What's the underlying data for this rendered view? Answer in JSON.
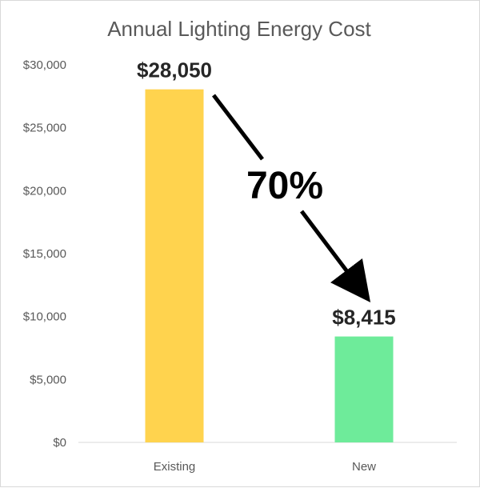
{
  "chart_data": {
    "type": "bar",
    "title": "Annual Lighting Energy Cost",
    "categories": [
      "Existing",
      "New"
    ],
    "values": [
      28050,
      8415
    ],
    "data_labels": [
      "$28,050",
      "$8,415"
    ],
    "bar_colors": [
      "#FFD34E",
      "#6EEB9A"
    ],
    "ylim": [
      0,
      30000
    ],
    "yticks": [
      0,
      5000,
      10000,
      15000,
      20000,
      25000,
      30000
    ],
    "ytick_labels": [
      "$0",
      "$5,000",
      "$10,000",
      "$15,000",
      "$20,000",
      "$25,000",
      "$30,000"
    ],
    "xlabel": "",
    "ylabel": "",
    "grid": false,
    "legend": "none",
    "annotation": {
      "text": "70%",
      "arrow_from": "Existing",
      "arrow_to": "New"
    }
  }
}
